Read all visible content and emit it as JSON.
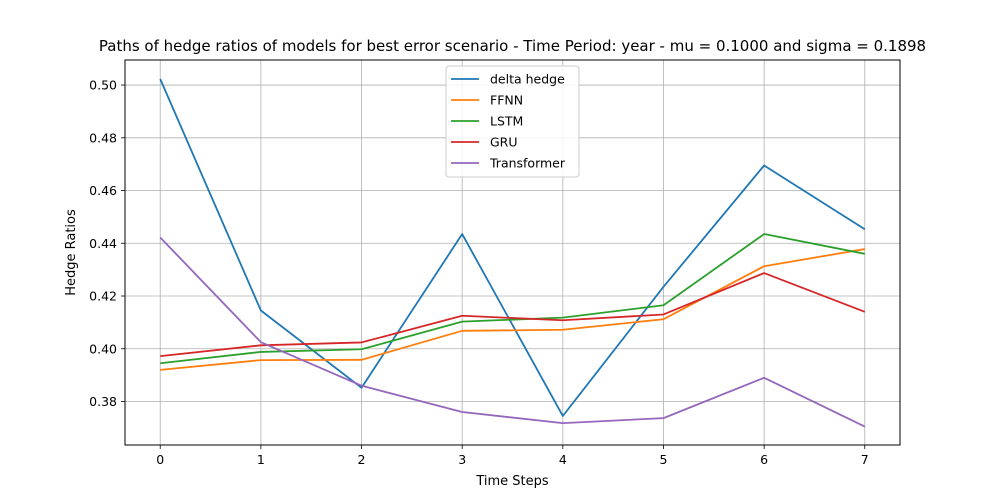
{
  "chart_data": {
    "type": "line",
    "title": "Paths of hedge ratios of models for best error scenario - Time Period: year - mu = 0.1000 and sigma = 0.1898",
    "xlabel": "Time Steps",
    "ylabel": "Hedge Ratios",
    "x": [
      0,
      1,
      2,
      3,
      4,
      5,
      6,
      7
    ],
    "xlim": [
      -0.35,
      7.35
    ],
    "ylim": [
      0.3635,
      0.5095
    ],
    "xticks": [
      "0",
      "1",
      "2",
      "3",
      "4",
      "5",
      "6",
      "7"
    ],
    "yticks": [
      0.38,
      0.4,
      0.42,
      0.44,
      0.46,
      0.48,
      0.5
    ],
    "ytick_labels": [
      "0.38",
      "0.40",
      "0.42",
      "0.44",
      "0.46",
      "0.48",
      "0.50"
    ],
    "grid": true,
    "legend_position": "top-center",
    "series": [
      {
        "name": "delta hedge",
        "color": "#1f77b4",
        "values": [
          0.5023,
          0.4145,
          0.3852,
          0.4435,
          0.3745,
          0.4235,
          0.4695,
          0.4453
        ]
      },
      {
        "name": "FFNN",
        "color": "#ff7f0e",
        "values": [
          0.392,
          0.3957,
          0.3958,
          0.4068,
          0.4072,
          0.4112,
          0.4313,
          0.4378
        ]
      },
      {
        "name": "LSTM",
        "color": "#2ca02c",
        "values": [
          0.3945,
          0.3988,
          0.3998,
          0.4103,
          0.4118,
          0.4165,
          0.4435,
          0.436
        ]
      },
      {
        "name": "GRU",
        "color": "#d62728",
        "values": [
          0.3972,
          0.4013,
          0.4024,
          0.4125,
          0.4108,
          0.413,
          0.4287,
          0.414
        ]
      },
      {
        "name": "Transformer",
        "color": "#9467bd",
        "values": [
          0.4422,
          0.4025,
          0.386,
          0.376,
          0.3718,
          0.3737,
          0.389,
          0.3705
        ]
      }
    ]
  }
}
